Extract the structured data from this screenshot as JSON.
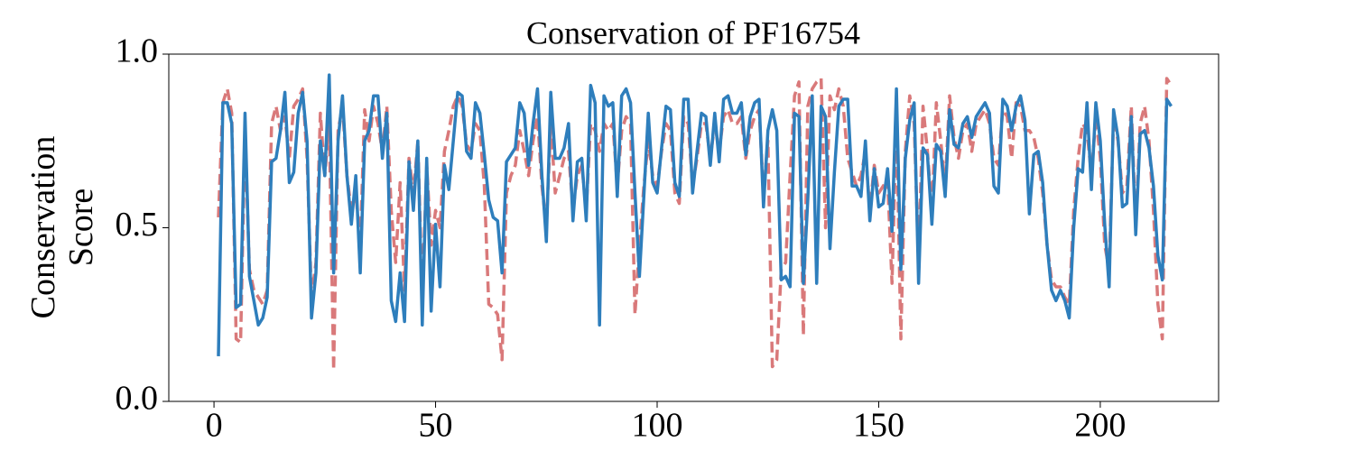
{
  "chart_data": {
    "type": "line",
    "title": "Conservation of PF16754",
    "ylabel": "Conservation\nScore",
    "x": [
      1,
      2,
      3,
      4,
      5,
      6,
      7,
      8,
      9,
      10,
      11,
      12,
      13,
      14,
      15,
      16,
      17,
      18,
      19,
      20,
      21,
      22,
      23,
      24,
      25,
      26,
      27,
      28,
      29,
      30,
      31,
      32,
      33,
      34,
      35,
      36,
      37,
      38,
      39,
      40,
      41,
      42,
      43,
      44,
      45,
      46,
      47,
      48,
      49,
      50,
      51,
      52,
      53,
      54,
      55,
      56,
      57,
      58,
      59,
      60,
      61,
      62,
      63,
      64,
      65,
      66,
      67,
      68,
      69,
      70,
      71,
      72,
      73,
      74,
      75,
      76,
      77,
      78,
      79,
      80,
      81,
      82,
      83,
      84,
      85,
      86,
      87,
      88,
      89,
      90,
      91,
      92,
      93,
      94,
      95,
      96,
      97,
      98,
      99,
      100,
      101,
      102,
      103,
      104,
      105,
      106,
      107,
      108,
      109,
      110,
      111,
      112,
      113,
      114,
      115,
      116,
      117,
      118,
      119,
      120,
      121,
      122,
      123,
      124,
      125,
      126,
      127,
      128,
      129,
      130,
      131,
      132,
      133,
      134,
      135,
      136,
      137,
      138,
      139,
      140,
      141,
      142,
      143,
      144,
      145,
      146,
      147,
      148,
      149,
      150,
      151,
      152,
      153,
      154,
      155,
      156,
      157,
      158,
      159,
      160,
      161,
      162,
      163,
      164,
      165,
      166,
      167,
      168,
      169,
      170,
      171,
      172,
      173,
      174,
      175,
      176,
      177,
      178,
      179,
      180,
      181,
      182,
      183,
      184,
      185,
      186,
      187,
      188,
      189,
      190,
      191,
      192,
      193,
      194,
      195,
      196,
      197,
      198,
      199,
      200,
      201,
      202,
      203,
      204,
      205,
      206,
      207,
      208,
      209,
      210,
      211,
      212,
      213,
      214,
      215,
      216
    ],
    "series": [
      {
        "color": "#d9797a",
        "dash": true,
        "values": [
          0.53,
          0.86,
          0.9,
          0.83,
          0.18,
          0.17,
          0.78,
          0.38,
          0.32,
          0.3,
          0.28,
          0.32,
          0.8,
          0.85,
          0.78,
          0.82,
          0.7,
          0.85,
          0.87,
          0.9,
          0.7,
          0.3,
          0.4,
          0.83,
          0.65,
          0.8,
          0.09,
          0.78,
          0.85,
          0.65,
          0.55,
          0.6,
          0.45,
          0.84,
          0.75,
          0.85,
          0.8,
          0.72,
          0.85,
          0.55,
          0.4,
          0.63,
          0.32,
          0.7,
          0.6,
          0.75,
          0.3,
          0.68,
          0.45,
          0.55,
          0.5,
          0.72,
          0.78,
          0.85,
          0.88,
          0.85,
          0.74,
          0.72,
          0.8,
          0.78,
          0.62,
          0.28,
          0.27,
          0.25,
          0.12,
          0.6,
          0.65,
          0.68,
          0.78,
          0.72,
          0.65,
          0.75,
          0.82,
          0.62,
          0.5,
          0.8,
          0.6,
          0.65,
          0.7,
          0.72,
          0.55,
          0.65,
          0.68,
          0.55,
          0.8,
          0.78,
          0.72,
          0.8,
          0.78,
          0.8,
          0.62,
          0.78,
          0.82,
          0.8,
          0.25,
          0.45,
          0.62,
          0.75,
          0.65,
          0.62,
          0.72,
          0.8,
          0.78,
          0.6,
          0.57,
          0.82,
          0.8,
          0.62,
          0.7,
          0.8,
          0.8,
          0.7,
          0.8,
          0.72,
          0.82,
          0.84,
          0.8,
          0.8,
          0.82,
          0.7,
          0.78,
          0.82,
          0.84,
          0.6,
          0.75,
          0.1,
          0.12,
          0.38,
          0.4,
          0.65,
          0.88,
          0.92,
          0.19,
          0.85,
          0.9,
          0.92,
          0.93,
          0.5,
          0.88,
          0.84,
          0.9,
          0.85,
          0.7,
          0.66,
          0.62,
          0.65,
          0.72,
          0.55,
          0.68,
          0.6,
          0.62,
          0.64,
          0.34,
          0.82,
          0.18,
          0.72,
          0.88,
          0.8,
          0.4,
          0.85,
          0.72,
          0.55,
          0.86,
          0.75,
          0.62,
          0.88,
          0.76,
          0.7,
          0.78,
          0.8,
          0.72,
          0.8,
          0.82,
          0.84,
          0.8,
          0.7,
          0.68,
          0.84,
          0.82,
          0.7,
          0.86,
          0.85,
          0.78,
          0.78,
          0.76,
          0.7,
          0.6,
          0.45,
          0.35,
          0.33,
          0.33,
          0.3,
          0.28,
          0.55,
          0.7,
          0.8,
          0.78,
          0.65,
          0.82,
          0.7,
          0.45,
          0.38,
          0.82,
          0.75,
          0.6,
          0.62,
          0.85,
          0.5,
          0.8,
          0.85,
          0.75,
          0.55,
          0.28,
          0.18,
          0.93,
          0.91
        ]
      },
      {
        "color": "#2e7ebc",
        "dash": false,
        "values": [
          0.13,
          0.86,
          0.86,
          0.8,
          0.27,
          0.28,
          0.83,
          0.36,
          0.29,
          0.22,
          0.24,
          0.3,
          0.69,
          0.7,
          0.78,
          0.89,
          0.63,
          0.66,
          0.83,
          0.89,
          0.75,
          0.24,
          0.37,
          0.75,
          0.65,
          0.94,
          0.37,
          0.75,
          0.88,
          0.65,
          0.51,
          0.65,
          0.37,
          0.75,
          0.78,
          0.88,
          0.88,
          0.7,
          0.83,
          0.29,
          0.23,
          0.37,
          0.23,
          0.69,
          0.55,
          0.75,
          0.22,
          0.7,
          0.26,
          0.51,
          0.33,
          0.68,
          0.61,
          0.75,
          0.89,
          0.88,
          0.72,
          0.7,
          0.86,
          0.83,
          0.71,
          0.58,
          0.53,
          0.52,
          0.37,
          0.69,
          0.71,
          0.73,
          0.86,
          0.83,
          0.68,
          0.8,
          0.9,
          0.65,
          0.46,
          0.89,
          0.7,
          0.7,
          0.73,
          0.8,
          0.52,
          0.69,
          0.7,
          0.52,
          0.91,
          0.86,
          0.22,
          0.88,
          0.85,
          0.86,
          0.59,
          0.88,
          0.9,
          0.86,
          0.6,
          0.36,
          0.59,
          0.83,
          0.63,
          0.6,
          0.73,
          0.85,
          0.84,
          0.63,
          0.59,
          0.87,
          0.87,
          0.6,
          0.72,
          0.83,
          0.82,
          0.68,
          0.83,
          0.69,
          0.87,
          0.88,
          0.83,
          0.83,
          0.86,
          0.71,
          0.82,
          0.86,
          0.87,
          0.56,
          0.78,
          0.84,
          0.78,
          0.35,
          0.36,
          0.33,
          0.83,
          0.82,
          0.34,
          0.58,
          0.88,
          0.34,
          0.85,
          0.82,
          0.44,
          0.66,
          0.85,
          0.87,
          0.87,
          0.62,
          0.62,
          0.59,
          0.75,
          0.52,
          0.67,
          0.56,
          0.57,
          0.67,
          0.49,
          0.9,
          0.38,
          0.7,
          0.81,
          0.86,
          0.34,
          0.73,
          0.71,
          0.51,
          0.74,
          0.72,
          0.59,
          0.84,
          0.74,
          0.73,
          0.8,
          0.82,
          0.76,
          0.82,
          0.84,
          0.86,
          0.83,
          0.62,
          0.6,
          0.87,
          0.85,
          0.78,
          0.85,
          0.88,
          0.81,
          0.54,
          0.71,
          0.72,
          0.63,
          0.45,
          0.32,
          0.29,
          0.32,
          0.29,
          0.24,
          0.5,
          0.67,
          0.66,
          0.86,
          0.61,
          0.86,
          0.75,
          0.51,
          0.33,
          0.84,
          0.76,
          0.56,
          0.57,
          0.82,
          0.48,
          0.77,
          0.78,
          0.73,
          0.62,
          0.42,
          0.35,
          0.87,
          0.85
        ]
      }
    ],
    "xlim": [
      -10.2,
      226.7
    ],
    "xticks": [
      0,
      50,
      100,
      150,
      200
    ],
    "ylim": [
      0,
      1
    ],
    "yticks": [
      {
        "value": 0,
        "label": "0.0"
      },
      {
        "value": 0.5,
        "label": "0.5"
      },
      {
        "value": 1,
        "label": "1.0"
      }
    ]
  }
}
